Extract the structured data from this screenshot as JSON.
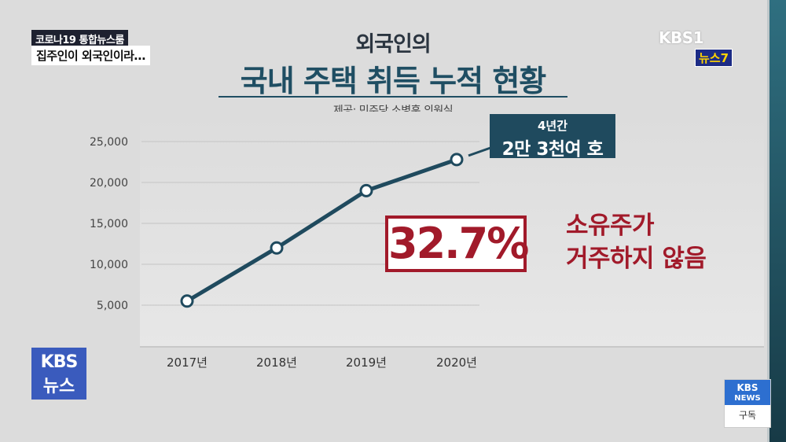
{
  "overlay": {
    "program_tag": "코로나19 통합뉴스룸",
    "headline": "집주인이 외국인이라…",
    "broadcaster_logo": "KBS1",
    "program_badge": "뉴스7",
    "corner_logo_top": "KBS",
    "corner_logo_bottom": "뉴스",
    "subscribe_logo_top": "KBS",
    "subscribe_logo_sub": "NEWS",
    "subscribe_label": "구독"
  },
  "annotations": {
    "callout_line1": "4년간",
    "callout_line2": "2만 3천여 호",
    "percent": "32.7%",
    "red_line1": "소유주가",
    "red_line2": "거주하지 않음"
  },
  "colors": {
    "line": "#1f4a5e",
    "accent_red": "#a11a2a",
    "title": "#1f4e63"
  },
  "chart_data": {
    "type": "line",
    "title_line1": "외국인의",
    "title_line2": "국내 주택 취득 누적 현황",
    "source": "제공: 민주당 소병훈 의원실",
    "categories": [
      "2017년",
      "2018년",
      "2019년",
      "2020년"
    ],
    "values": [
      5500,
      12000,
      19000,
      22800
    ],
    "yticks": [
      "5,000",
      "10,000",
      "15,000",
      "20,000",
      "25,000"
    ],
    "ylim": [
      0,
      27500
    ],
    "grid": true
  }
}
